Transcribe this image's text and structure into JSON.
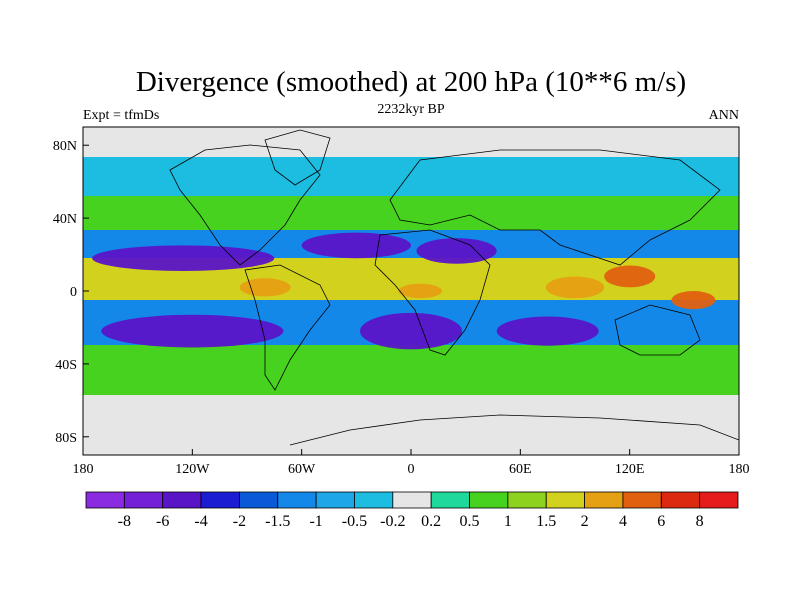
{
  "chart_data": {
    "type": "heatmap",
    "title": "Divergence (smoothed) at 200 hPa (10**6 m/s)",
    "subtitle": "2232kyr BP",
    "left_string": "Expt = tfmDs",
    "right_string": "ANN",
    "x_axis": {
      "range": [
        -180,
        180
      ],
      "ticks": [
        {
          "value": -180,
          "label": "180"
        },
        {
          "value": -120,
          "label": "120W"
        },
        {
          "value": -60,
          "label": "60W"
        },
        {
          "value": 0,
          "label": "0"
        },
        {
          "value": 60,
          "label": "60E"
        },
        {
          "value": 120,
          "label": "120E"
        },
        {
          "value": 180,
          "label": "180"
        }
      ]
    },
    "y_axis": {
      "range": [
        -90,
        90
      ],
      "ticks": [
        {
          "value": 80,
          "label": "80N"
        },
        {
          "value": 40,
          "label": "40N"
        },
        {
          "value": 0,
          "label": "0"
        },
        {
          "value": -40,
          "label": "40S"
        },
        {
          "value": -80,
          "label": "80S"
        }
      ]
    },
    "colorbar": {
      "labels": [
        "-8",
        "-6",
        "-4",
        "-2",
        "-1.5",
        "-1",
        "-0.5",
        "-0.2",
        "0.2",
        "0.5",
        "1",
        "1.5",
        "2",
        "4",
        "6",
        "8"
      ],
      "colors": [
        "#8a2be2",
        "#7420d8",
        "#5a14c8",
        "#1c1cd2",
        "#0a5ad8",
        "#1488e8",
        "#1ea6e8",
        "#1cbde0",
        "#e6e6e6",
        "#1ed89c",
        "#46d21e",
        "#8cd21e",
        "#d2d21e",
        "#e6a014",
        "#e06010",
        "#dc2a10",
        "#e61c1c"
      ]
    },
    "regions": [
      {
        "name": "tropical-pacific-convergence",
        "class": 2,
        "lon": -125,
        "lat": 18,
        "rx": 50,
        "ry": 7
      },
      {
        "name": "tropical-pacific-convergence-2",
        "class": 2,
        "lon": -120,
        "lat": -22,
        "rx": 50,
        "ry": 9
      },
      {
        "name": "south-atlantic-convergence",
        "class": 2,
        "lon": 0,
        "lat": -22,
        "rx": 28,
        "ry": 10
      },
      {
        "name": "north-atlantic-convergence",
        "class": 2,
        "lon": -30,
        "lat": 25,
        "rx": 30,
        "ry": 7
      },
      {
        "name": "sahara-convergence",
        "class": 2,
        "lon": 25,
        "lat": 22,
        "rx": 22,
        "ry": 7
      },
      {
        "name": "indian-ocean-convergence",
        "class": 2,
        "lon": 75,
        "lat": -22,
        "rx": 28,
        "ry": 8
      },
      {
        "name": "east-pacific-divergence",
        "class": 13,
        "lon": -80,
        "lat": 2,
        "rx": 14,
        "ry": 5
      },
      {
        "name": "africa-divergence",
        "class": 13,
        "lon": 5,
        "lat": 0,
        "rx": 12,
        "ry": 4
      },
      {
        "name": "indian-warm-pool",
        "class": 13,
        "lon": 90,
        "lat": 2,
        "rx": 16,
        "ry": 6
      },
      {
        "name": "maritime-continent",
        "class": 14,
        "lon": 120,
        "lat": 8,
        "rx": 14,
        "ry": 6
      },
      {
        "name": "west-pacific-warm",
        "class": 14,
        "lon": 155,
        "lat": -5,
        "rx": 12,
        "ry": 5
      }
    ]
  }
}
